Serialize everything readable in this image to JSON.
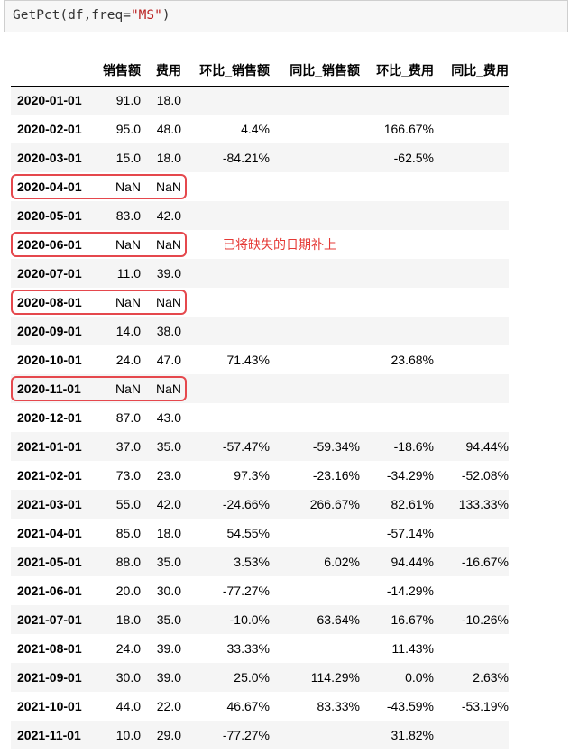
{
  "code": {
    "prefix": "GetPct(df,freq=",
    "string": "\"MS\"",
    "suffix": ")"
  },
  "columns": [
    "销售额",
    "费用",
    "环比_销售额",
    "同比_销售额",
    "环比_费用",
    "同比_费用"
  ],
  "rows": [
    [
      "2020-01-01",
      "91.0",
      "18.0",
      "",
      "",
      "",
      ""
    ],
    [
      "2020-02-01",
      "95.0",
      "48.0",
      "4.4%",
      "",
      "166.67%",
      ""
    ],
    [
      "2020-03-01",
      "15.0",
      "18.0",
      "-84.21%",
      "",
      "-62.5%",
      ""
    ],
    [
      "2020-04-01",
      "NaN",
      "NaN",
      "",
      "",
      "",
      ""
    ],
    [
      "2020-05-01",
      "83.0",
      "42.0",
      "",
      "",
      "",
      ""
    ],
    [
      "2020-06-01",
      "NaN",
      "NaN",
      "",
      "",
      "",
      ""
    ],
    [
      "2020-07-01",
      "11.0",
      "39.0",
      "",
      "",
      "",
      ""
    ],
    [
      "2020-08-01",
      "NaN",
      "NaN",
      "",
      "",
      "",
      ""
    ],
    [
      "2020-09-01",
      "14.0",
      "38.0",
      "",
      "",
      "",
      ""
    ],
    [
      "2020-10-01",
      "24.0",
      "47.0",
      "71.43%",
      "",
      "23.68%",
      ""
    ],
    [
      "2020-11-01",
      "NaN",
      "NaN",
      "",
      "",
      "",
      ""
    ],
    [
      "2020-12-01",
      "87.0",
      "43.0",
      "",
      "",
      "",
      ""
    ],
    [
      "2021-01-01",
      "37.0",
      "35.0",
      "-57.47%",
      "-59.34%",
      "-18.6%",
      "94.44%"
    ],
    [
      "2021-02-01",
      "73.0",
      "23.0",
      "97.3%",
      "-23.16%",
      "-34.29%",
      "-52.08%"
    ],
    [
      "2021-03-01",
      "55.0",
      "42.0",
      "-24.66%",
      "266.67%",
      "82.61%",
      "133.33%"
    ],
    [
      "2021-04-01",
      "85.0",
      "18.0",
      "54.55%",
      "",
      "-57.14%",
      ""
    ],
    [
      "2021-05-01",
      "88.0",
      "35.0",
      "3.53%",
      "6.02%",
      "94.44%",
      "-16.67%"
    ],
    [
      "2021-06-01",
      "20.0",
      "30.0",
      "-77.27%",
      "",
      "-14.29%",
      ""
    ],
    [
      "2021-07-01",
      "18.0",
      "35.0",
      "-10.0%",
      "63.64%",
      "16.67%",
      "-10.26%"
    ],
    [
      "2021-08-01",
      "24.0",
      "39.0",
      "33.33%",
      "",
      "11.43%",
      ""
    ],
    [
      "2021-09-01",
      "30.0",
      "39.0",
      "25.0%",
      "114.29%",
      "0.0%",
      "2.63%"
    ],
    [
      "2021-10-01",
      "44.0",
      "22.0",
      "46.67%",
      "83.33%",
      "-43.59%",
      "-53.19%"
    ],
    [
      "2021-11-01",
      "10.0",
      "29.0",
      "-77.27%",
      "",
      "31.82%",
      ""
    ]
  ],
  "highlighted_rows": [
    "2020-04-01",
    "2020-06-01",
    "2020-08-01",
    "2020-11-01"
  ],
  "annotation": "已将缺失的日期补上",
  "colors": {
    "highlight": "#e5484d",
    "annotation": "#e53935",
    "string_literal": "#ba2121"
  }
}
